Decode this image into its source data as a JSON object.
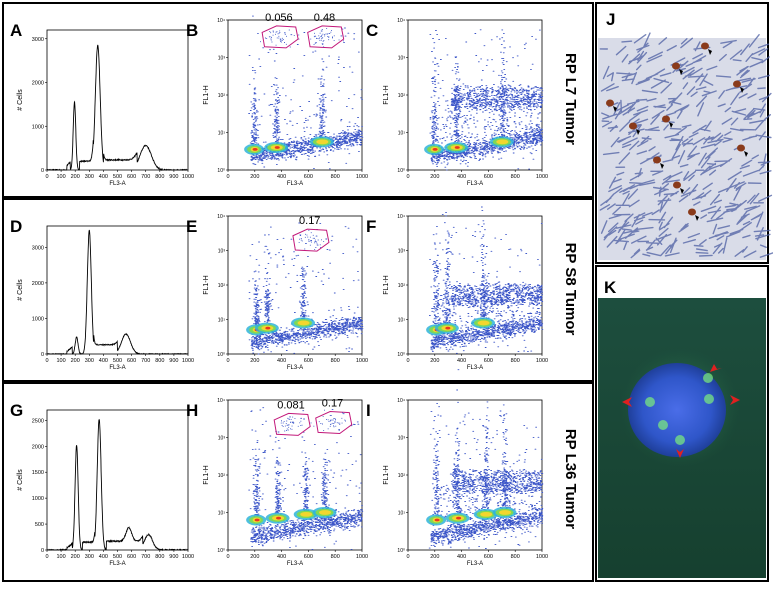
{
  "figure": {
    "tumors": [
      {
        "row_label": "RP L7 Tumor",
        "hist": {
          "letter": "A",
          "ylabel": "# Cells",
          "xlabel": "FL3-A",
          "xticks": [
            "0",
            "100",
            "200",
            "300",
            "400",
            "500",
            "600",
            "700",
            "800",
            "900",
            "1000"
          ],
          "yticks": [
            "0",
            "1000",
            "2000",
            "3000"
          ],
          "ymax": 3200,
          "peaks": [
            {
              "x": 195,
              "h": 1560,
              "w": 9
            },
            {
              "x": 360,
              "h": 2850,
              "w": 17
            },
            {
              "x": 700,
              "h": 560,
              "w": 40
            }
          ],
          "valley": 180,
          "sphase": [
            {
              "from": 230,
              "to": 330,
              "level": 200
            },
            {
              "from": 400,
              "to": 640,
              "level": 230
            }
          ]
        },
        "dot_gated": {
          "letter": "B",
          "ylabel": "FL1-H",
          "xlabel": "FL3-A",
          "xticks": [
            "0",
            "200",
            "400",
            "600",
            "800",
            "1000"
          ],
          "yticks": [
            "10⁰",
            "10¹",
            "10²",
            "10³",
            "10⁴"
          ],
          "gates": [
            {
              "label": "0.056",
              "x": 380,
              "y": 3.55
            },
            {
              "label": "0.48",
              "x": 720,
              "y": 3.55
            }
          ],
          "pops": [
            {
              "x": 195,
              "y": 0.55
            },
            {
              "x": 360,
              "y": 0.6
            },
            {
              "x": 700,
              "y": 0.75
            }
          ]
        },
        "dot_control": {
          "letter": "C",
          "ylabel": "FL1-H",
          "xlabel": "FL3-A",
          "xticks": [
            "0",
            "200",
            "400",
            "600",
            "800",
            "1000"
          ],
          "yticks": [
            "10⁰",
            "10¹",
            "10²",
            "10³",
            "10⁴"
          ],
          "pops": [
            {
              "x": 195,
              "y": 0.55
            },
            {
              "x": 360,
              "y": 0.6
            },
            {
              "x": 700,
              "y": 0.75
            }
          ],
          "upper_band": 1.9
        }
      },
      {
        "row_label": "RP S8  Tumor",
        "hist": {
          "letter": "D",
          "ylabel": "# Cells",
          "xlabel": "FL3-A",
          "xticks": [
            "0",
            "100",
            "200",
            "300",
            "400",
            "500",
            "600",
            "700",
            "800",
            "900",
            "1000"
          ],
          "yticks": [
            "0",
            "1000",
            "2000",
            "3000"
          ],
          "ymax": 3600,
          "peaks": [
            {
              "x": 210,
              "h": 480,
              "w": 10
            },
            {
              "x": 300,
              "h": 3480,
              "w": 14
            },
            {
              "x": 560,
              "h": 560,
              "w": 32
            }
          ],
          "valley": 200,
          "sphase": [
            {
              "from": 330,
              "to": 500,
              "level": 260
            }
          ]
        },
        "dot_gated": {
          "letter": "E",
          "ylabel": "FL1-H",
          "xlabel": "FL3-A",
          "xticks": [
            "0",
            "200",
            "400",
            "600",
            "800",
            "1000"
          ],
          "yticks": [
            "10⁰",
            "10¹",
            "10²",
            "10³",
            "10⁴"
          ],
          "gates": [
            {
              "label": "0.17",
              "x": 610,
              "y": 3.3
            }
          ],
          "pops": [
            {
              "x": 210,
              "y": 0.7
            },
            {
              "x": 290,
              "y": 0.75
            },
            {
              "x": 560,
              "y": 0.9
            }
          ]
        },
        "dot_control": {
          "letter": "F",
          "ylabel": "FL1-H",
          "xlabel": "FL3-A",
          "xticks": [
            "0",
            "200",
            "400",
            "600",
            "800",
            "1000"
          ],
          "yticks": [
            "10⁰",
            "10¹",
            "10²",
            "10³",
            "10⁴"
          ],
          "pops": [
            {
              "x": 210,
              "y": 0.7
            },
            {
              "x": 290,
              "y": 0.75
            },
            {
              "x": 560,
              "y": 0.9
            }
          ],
          "upper_band": 1.7
        }
      },
      {
        "row_label": "RP L36 Tumor",
        "hist": {
          "letter": "G",
          "ylabel": "# Cells",
          "xlabel": "FL3-A",
          "xticks": [
            "0",
            "100",
            "200",
            "300",
            "400",
            "500",
            "600",
            "700",
            "800",
            "900",
            "1000"
          ],
          "yticks": [
            "0",
            "500",
            "1000",
            "1500",
            "2000",
            "2500"
          ],
          "ymax": 2700,
          "peaks": [
            {
              "x": 210,
              "h": 2020,
              "w": 11
            },
            {
              "x": 370,
              "h": 2520,
              "w": 14
            },
            {
              "x": 580,
              "h": 260,
              "w": 20
            },
            {
              "x": 720,
              "h": 300,
              "w": 28
            }
          ],
          "valley": 120,
          "sphase": [
            {
              "from": 250,
              "to": 340,
              "level": 150
            },
            {
              "from": 420,
              "to": 680,
              "level": 170
            }
          ]
        },
        "dot_gated": {
          "letter": "H",
          "ylabel": "FL1-H",
          "xlabel": "FL3-A",
          "xticks": [
            "0",
            "200",
            "400",
            "600",
            "800",
            "1000"
          ],
          "yticks": [
            "10⁰",
            "10¹",
            "10²",
            "10³",
            "10⁴"
          ],
          "gates": [
            {
              "label": "0.081",
              "x": 470,
              "y": 3.35
            },
            {
              "label": "0.17",
              "x": 780,
              "y": 3.4
            }
          ],
          "pops": [
            {
              "x": 210,
              "y": 0.8
            },
            {
              "x": 370,
              "y": 0.85
            },
            {
              "x": 580,
              "y": 0.95
            },
            {
              "x": 720,
              "y": 1.0
            }
          ]
        },
        "dot_control": {
          "letter": "I",
          "ylabel": "FL1-H",
          "xlabel": "FL3-A",
          "xticks": [
            "0",
            "200",
            "400",
            "600",
            "800",
            "1000"
          ],
          "yticks": [
            "10⁰",
            "10¹",
            "10²",
            "10³",
            "10⁴"
          ],
          "pops": [
            {
              "x": 210,
              "y": 0.8
            },
            {
              "x": 370,
              "y": 0.85
            },
            {
              "x": 580,
              "y": 0.95
            },
            {
              "x": 720,
              "y": 1.0
            }
          ],
          "upper_band": 1.8
        }
      }
    ],
    "micrographs": [
      {
        "letter": "J",
        "description": "immunohistochemistry stained tissue with arrowheads"
      },
      {
        "letter": "K",
        "description": "fluorescence nucleus with red arrowheads"
      }
    ]
  },
  "chart_data": [
    {
      "type": "area",
      "panel": "A",
      "xlabel": "FL3-A",
      "ylabel": "# Cells",
      "xlim": [
        0,
        1000
      ],
      "ylim": [
        0,
        3200
      ],
      "x": [
        195,
        360,
        700
      ],
      "y": [
        1560,
        2850,
        560
      ]
    },
    {
      "type": "scatter",
      "panel": "B",
      "xlabel": "FL3-A",
      "ylabel": "FL1-H",
      "xlim": [
        0,
        1000
      ],
      "ylim": [
        "10⁰",
        "10⁴"
      ],
      "annotations": [
        "0.056",
        "0.48"
      ]
    },
    {
      "type": "scatter",
      "panel": "C",
      "xlabel": "FL3-A",
      "ylabel": "FL1-H",
      "xlim": [
        0,
        1000
      ],
      "ylim": [
        "10⁰",
        "10⁴"
      ]
    },
    {
      "type": "area",
      "panel": "D",
      "xlabel": "FL3-A",
      "ylabel": "# Cells",
      "xlim": [
        0,
        1000
      ],
      "ylim": [
        0,
        3600
      ],
      "x": [
        210,
        300,
        560
      ],
      "y": [
        480,
        3480,
        560
      ]
    },
    {
      "type": "scatter",
      "panel": "E",
      "xlabel": "FL3-A",
      "ylabel": "FL1-H",
      "xlim": [
        0,
        1000
      ],
      "ylim": [
        "10⁰",
        "10⁴"
      ],
      "annotations": [
        "0.17"
      ]
    },
    {
      "type": "scatter",
      "panel": "F",
      "xlabel": "FL3-A",
      "ylabel": "FL1-H",
      "xlim": [
        0,
        1000
      ],
      "ylim": [
        "10⁰",
        "10⁴"
      ]
    },
    {
      "type": "area",
      "panel": "G",
      "xlabel": "FL3-A",
      "ylabel": "# Cells",
      "xlim": [
        0,
        1000
      ],
      "ylim": [
        0,
        2700
      ],
      "x": [
        210,
        370,
        580,
        720
      ],
      "y": [
        2020,
        2520,
        260,
        300
      ]
    },
    {
      "type": "scatter",
      "panel": "H",
      "xlabel": "FL3-A",
      "ylabel": "FL1-H",
      "xlim": [
        0,
        1000
      ],
      "ylim": [
        "10⁰",
        "10⁴"
      ],
      "annotations": [
        "0.081",
        "0.17"
      ]
    },
    {
      "type": "scatter",
      "panel": "I",
      "xlabel": "FL3-A",
      "ylabel": "FL1-H",
      "xlim": [
        0,
        1000
      ],
      "ylim": [
        "10⁰",
        "10⁴"
      ]
    }
  ]
}
